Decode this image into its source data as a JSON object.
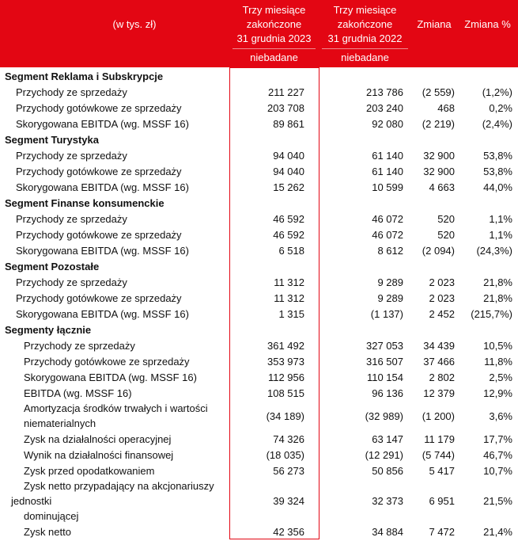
{
  "header": {
    "label": "(w tys. zł)",
    "columns": [
      {
        "lines": [
          "Trzy miesiące",
          "zakończone",
          "31 grudnia 2023"
        ],
        "note": "niebadane"
      },
      {
        "lines": [
          "Trzy miesiące",
          "zakończone",
          "31 grudnia 2022"
        ],
        "note": "niebadane"
      },
      {
        "lines": [
          "Zmiana"
        ]
      },
      {
        "lines": [
          "Zmiana %"
        ]
      }
    ]
  },
  "sections": [
    {
      "title": "Segment Reklama i Subskrypcje",
      "rows": [
        {
          "label": "Przychody ze sprzedaży",
          "values": [
            "211 227",
            "213 786",
            "(2 559)",
            "(1,2%)"
          ]
        },
        {
          "label": "Przychody gotówkowe ze sprzedaży",
          "values": [
            "203 708",
            "203 240",
            "468",
            "0,2%"
          ]
        },
        {
          "label": "Skorygowana EBITDA (wg. MSSF 16)",
          "values": [
            "89 861",
            "92 080",
            "(2 219)",
            "(2,4%)"
          ]
        }
      ]
    },
    {
      "title": "Segment Turystyka",
      "rows": [
        {
          "label": "Przychody ze sprzedaży",
          "values": [
            "94 040",
            "61 140",
            "32 900",
            "53,8%"
          ]
        },
        {
          "label": "Przychody gotówkowe ze sprzedaży",
          "values": [
            "94 040",
            "61 140",
            "32 900",
            "53,8%"
          ]
        },
        {
          "label": "Skorygowana EBITDA (wg. MSSF 16)",
          "values": [
            "15 262",
            "10 599",
            "4 663",
            "44,0%"
          ]
        }
      ]
    },
    {
      "title": "Segment Finanse konsumenckie",
      "rows": [
        {
          "label": "Przychody ze sprzedaży",
          "values": [
            "46 592",
            "46 072",
            "520",
            "1,1%"
          ]
        },
        {
          "label": "Przychody gotówkowe ze sprzedaży",
          "values": [
            "46 592",
            "46 072",
            "520",
            "1,1%"
          ]
        },
        {
          "label": "Skorygowana EBITDA (wg. MSSF 16)",
          "values": [
            "6 518",
            "8 612",
            "(2 094)",
            "(24,3%)"
          ]
        }
      ]
    },
    {
      "title": "Segment Pozostałe",
      "rows": [
        {
          "label": "Przychody ze sprzedaży",
          "values": [
            "11 312",
            "9 289",
            "2 023",
            "21,8%"
          ]
        },
        {
          "label": "Przychody gotówkowe ze sprzedaży",
          "values": [
            "11 312",
            "9 289",
            "2 023",
            "21,8%"
          ]
        },
        {
          "label": "Skorygowana EBITDA (wg. MSSF 16)",
          "values": [
            "1 315",
            "(1 137)",
            "2 452",
            "(215,7%)"
          ]
        }
      ]
    },
    {
      "title": "Segmenty łącznie",
      "rows": [
        {
          "label": "Przychody ze sprzedaży",
          "values": [
            "361 492",
            "327 053",
            "34 439",
            "10,5%"
          ]
        },
        {
          "label": "Przychody gotówkowe ze sprzedaży",
          "values": [
            "353 973",
            "316 507",
            "37 466",
            "11,8%"
          ]
        },
        {
          "label": "Skorygowana EBITDA (wg. MSSF 16)",
          "values": [
            "112 956",
            "110 154",
            "2 802",
            "2,5%"
          ]
        },
        {
          "label": "EBITDA (wg. MSSF 16)",
          "values": [
            "108 515",
            "96 136",
            "12 379",
            "12,9%"
          ]
        },
        {
          "lines": [
            "Amortyzacja środków trwałych i wartości",
            "niematerialnych"
          ],
          "values": [
            "(34 189)",
            "(32 989)",
            "(1 200)",
            "3,6%"
          ]
        },
        {
          "label": "Zysk na działalności operacyjnej",
          "values": [
            "74 326",
            "63 147",
            "11 179",
            "17,7%"
          ]
        },
        {
          "label": "Wynik na działalności finansowej",
          "values": [
            "(18 035)",
            "(12 291)",
            "(5 744)",
            "46,7%"
          ]
        },
        {
          "label": "Zysk przed opodatkowaniem",
          "values": [
            "56 273",
            "50 856",
            "5 417",
            "10,7%"
          ]
        },
        {
          "lines": [
            "Zysk netto przypadający na akcjonariuszy",
            "jednostki",
            "dominującej"
          ],
          "values": [
            "39 324",
            "32 373",
            "6 951",
            "21,5%"
          ]
        },
        {
          "label": "Zysk netto",
          "values": [
            "42 356",
            "34 884",
            "7 472",
            "21,4%"
          ]
        }
      ]
    }
  ]
}
